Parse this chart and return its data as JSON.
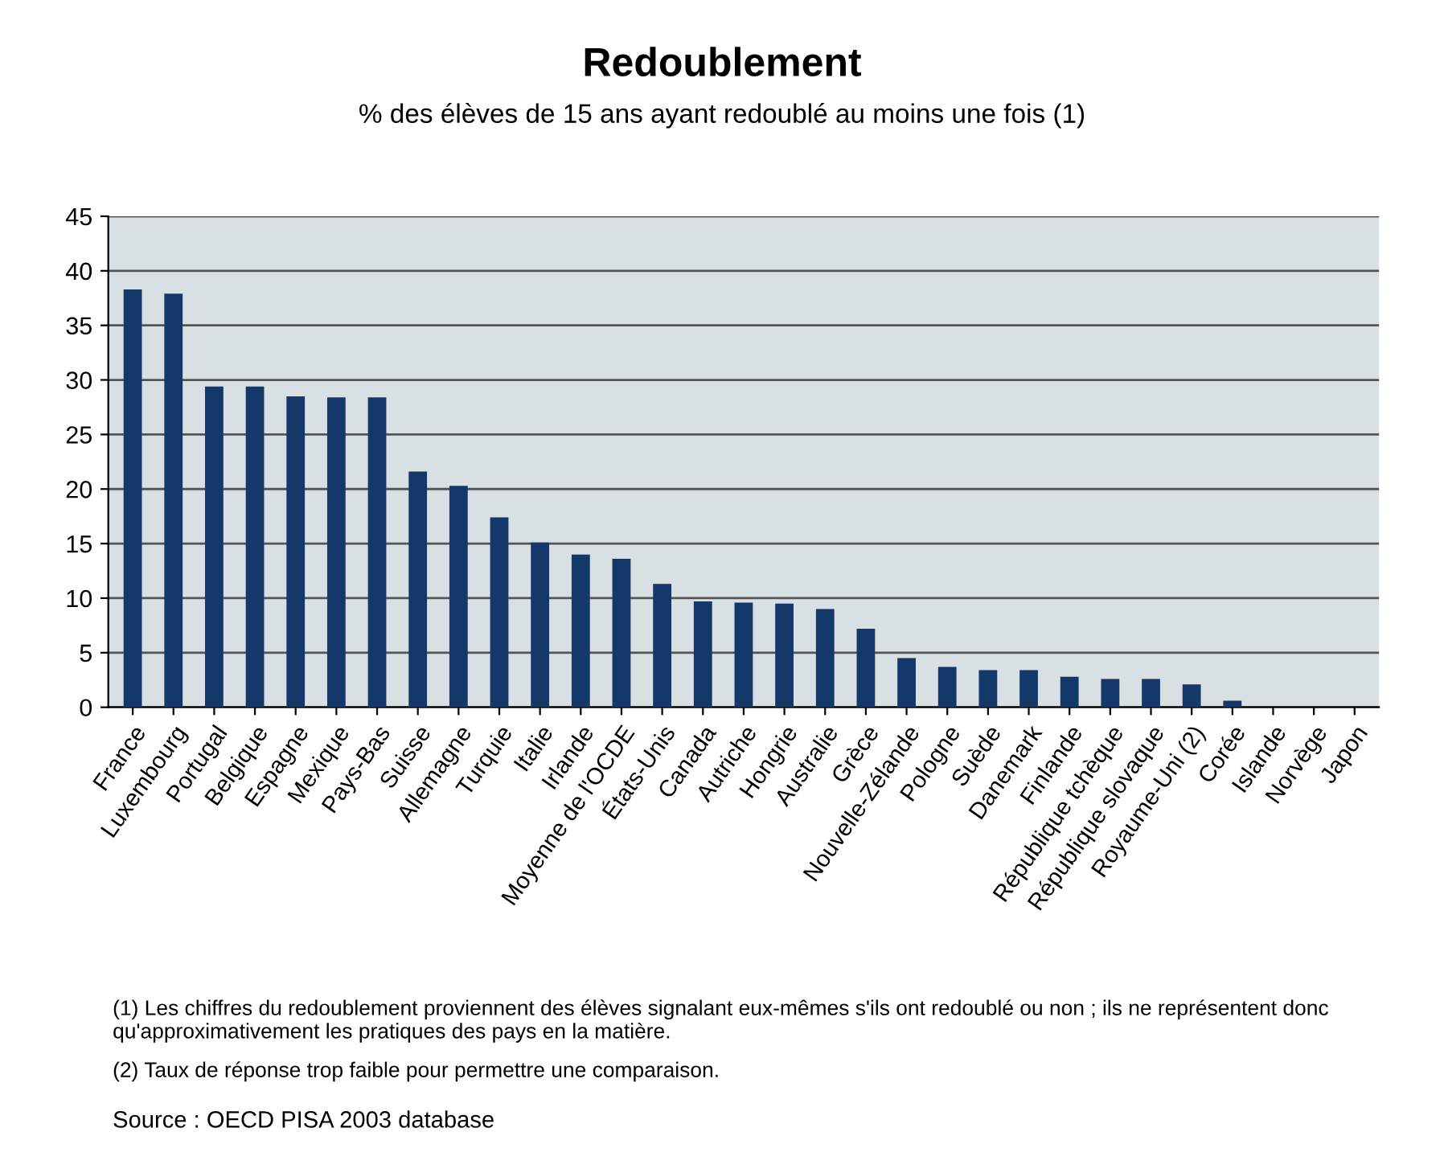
{
  "chart_data": {
    "type": "bar",
    "title": "Redoublement",
    "subtitle": "% des élèves de 15 ans ayant redoublé au moins une fois (1)",
    "categories": [
      "France",
      "Luxembourg",
      "Portugal",
      "Belgique",
      "Espagne",
      "Mexique",
      "Pays-Bas",
      "Suisse",
      "Allemagne",
      "Turquie",
      "Italie",
      "Irlande",
      "Moyenne de l'OCDE",
      "États-Unis",
      "Canada",
      "Autriche",
      "Hongrie",
      "Australie",
      "Grèce",
      "Nouvelle-Zélande",
      "Pologne",
      "Suède",
      "Danemark",
      "Finlande",
      "République tchèque",
      "République slovaque",
      "Royaume-Uni (2)",
      "Corée",
      "Islande",
      "Norvège",
      "Japon"
    ],
    "values": [
      38.3,
      37.9,
      29.4,
      29.4,
      28.5,
      28.4,
      28.4,
      21.6,
      20.3,
      17.4,
      15.1,
      14.0,
      13.6,
      11.3,
      9.7,
      9.6,
      9.5,
      9.0,
      7.2,
      4.5,
      3.7,
      3.4,
      3.4,
      2.8,
      2.6,
      2.6,
      2.1,
      0.6,
      0,
      0,
      0
    ],
    "color": "#14386a",
    "ylim": [
      0,
      45
    ],
    "yticks": [
      0,
      5,
      10,
      15,
      20,
      25,
      30,
      35,
      40,
      45
    ],
    "grid": "y",
    "annotations": [
      "(1) Les chiffres du redoublement proviennent des élèves signalant eux-mêmes s'ils ont redoublé ou non ; ils ne représentent donc qu'approximativement les pratiques des pays en la matière.",
      "(2) Taux de réponse trop faible pour permettre une comparaison.",
      "Source : OECD PISA 2003 database"
    ]
  }
}
